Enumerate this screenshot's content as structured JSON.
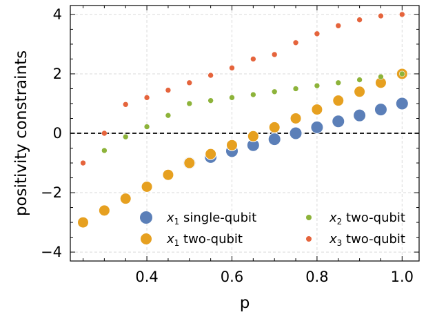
{
  "chart_data": {
    "type": "scatter",
    "title": "",
    "xlabel": "p",
    "ylabel": "positivity constraints",
    "xlim": [
      0.22,
      1.04
    ],
    "ylim": [
      -4.3,
      4.3
    ],
    "x_ticks": [
      "0.4",
      "0.6",
      "0.8",
      "1.0"
    ],
    "x_tick_values": [
      0.4,
      0.6,
      0.8,
      1.0
    ],
    "y_ticks": [
      "−4",
      "−2",
      "0",
      "2",
      "4"
    ],
    "y_tick_values": [
      -4,
      -2,
      0,
      2,
      4
    ],
    "grid": true,
    "reference_line_y": 0,
    "legend_position": "bottom-right",
    "series": [
      {
        "name": "x1 single-qubit",
        "legend_main": "x",
        "legend_sub": "1",
        "legend_rest": " single-qubit",
        "color": "#5b7fb8",
        "size": "large",
        "points": [
          [
            0.5,
            -1.0
          ],
          [
            0.55,
            -0.8
          ],
          [
            0.6,
            -0.6
          ],
          [
            0.65,
            -0.4
          ],
          [
            0.7,
            -0.2
          ],
          [
            0.75,
            0.0
          ],
          [
            0.8,
            0.2
          ],
          [
            0.85,
            0.4
          ],
          [
            0.9,
            0.6
          ],
          [
            0.95,
            0.8
          ],
          [
            1.0,
            1.0
          ]
        ]
      },
      {
        "name": "x1 two-qubit",
        "legend_main": "x",
        "legend_sub": "1",
        "legend_rest": " two-qubit",
        "color": "#e6a020",
        "size": "medium",
        "points": [
          [
            0.25,
            -3.0
          ],
          [
            0.3,
            -2.6
          ],
          [
            0.35,
            -2.2
          ],
          [
            0.4,
            -1.8
          ],
          [
            0.45,
            -1.4
          ],
          [
            0.5,
            -1.0
          ],
          [
            0.55,
            -0.7
          ],
          [
            0.6,
            -0.4
          ],
          [
            0.65,
            -0.1
          ],
          [
            0.7,
            0.2
          ],
          [
            0.75,
            0.5
          ],
          [
            0.8,
            0.8
          ],
          [
            0.85,
            1.1
          ],
          [
            0.9,
            1.4
          ],
          [
            0.95,
            1.7
          ],
          [
            1.0,
            2.0
          ]
        ]
      },
      {
        "name": "x2 two-qubit",
        "legend_main": "x",
        "legend_sub": "2",
        "legend_rest": " two-qubit",
        "color": "#8db33a",
        "size": "small",
        "points": [
          [
            0.3,
            -0.58
          ],
          [
            0.35,
            -0.12
          ],
          [
            0.4,
            0.22
          ],
          [
            0.45,
            0.6
          ],
          [
            0.5,
            1.0
          ],
          [
            0.55,
            1.1
          ],
          [
            0.6,
            1.2
          ],
          [
            0.65,
            1.3
          ],
          [
            0.7,
            1.4
          ],
          [
            0.75,
            1.5
          ],
          [
            0.8,
            1.6
          ],
          [
            0.85,
            1.7
          ],
          [
            0.9,
            1.8
          ],
          [
            0.95,
            1.9
          ],
          [
            1.0,
            2.0
          ]
        ]
      },
      {
        "name": "x3 two-qubit",
        "legend_main": "x",
        "legend_sub": "3",
        "legend_rest": " two-qubit",
        "color": "#e5643c",
        "size": "small",
        "points": [
          [
            0.25,
            -1.0
          ],
          [
            0.3,
            0.0
          ],
          [
            0.35,
            0.97
          ],
          [
            0.4,
            1.2
          ],
          [
            0.45,
            1.45
          ],
          [
            0.5,
            1.7
          ],
          [
            0.55,
            1.95
          ],
          [
            0.6,
            2.2
          ],
          [
            0.65,
            2.5
          ],
          [
            0.7,
            2.65
          ],
          [
            0.75,
            3.05
          ],
          [
            0.8,
            3.35
          ],
          [
            0.85,
            3.62
          ],
          [
            0.9,
            3.82
          ],
          [
            0.95,
            3.95
          ],
          [
            1.0,
            4.0
          ]
        ]
      }
    ]
  }
}
